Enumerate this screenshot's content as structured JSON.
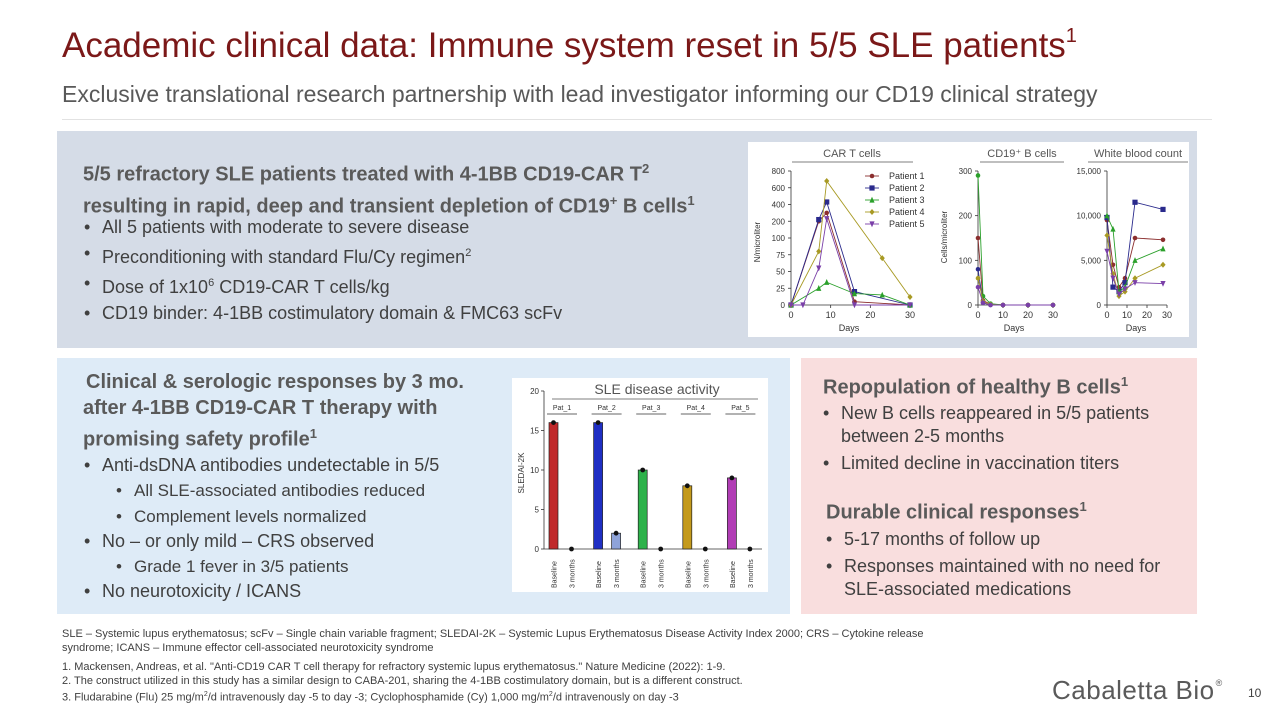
{
  "header": {
    "title": "Academic clinical data: Immune system reset in 5/5 SLE patients",
    "title_sup": "1",
    "subtitle": "Exclusive translational research partnership with lead investigator informing our CD19 clinical strategy"
  },
  "top_panel": {
    "heading_line1": "5/5 refractory SLE patients treated with 4-1BB CD19-CAR T",
    "heading_line1_sup": "2",
    "heading_line2_pre": "resulting in rapid, deep and transient depletion of CD19",
    "heading_line2_sup_plus": "+",
    "heading_line2_post": " B cells",
    "heading_line2_sup": "1",
    "bullets": {
      "b1": "All 5 patients with moderate to severe disease",
      "b2_pre": "Preconditioning with standard Flu/Cy regimen",
      "b2_sup": "2",
      "b3_pre": "Dose of 1x10",
      "b3_sup": "6",
      "b3_post": " CD19-CAR T cells/kg",
      "b4": "CD19 binder: 4-1BB costimulatory domain & FMC63 scFv"
    }
  },
  "left_panel": {
    "heading_line1": "Clinical & serologic responses by 3 mo.",
    "heading_line2": "after 4-1BB CD19-CAR T therapy with",
    "heading_line3": "promising safety profile",
    "heading_sup": "1",
    "bullets": {
      "b1": "Anti-dsDNA antibodies undetectable in 5/5",
      "b1a": "All SLE-associated antibodies reduced",
      "b1b": "Complement levels normalized",
      "b2": "No – or only mild – CRS observed",
      "b2a": "Grade 1 fever in 3/5 patients",
      "b3": "No neurotoxicity / ICANS"
    }
  },
  "right_panel": {
    "heading1": "Repopulation of healthy B cells",
    "heading1_sup": "1",
    "bullets1": {
      "b1_line1": "New B cells reappeared in 5/5 patients",
      "b1_line2": "between 2-5 months",
      "b2": "Limited decline in vaccination titers"
    },
    "heading2": "Durable clinical responses",
    "heading2_sup": "1",
    "bullets2": {
      "b1": "5-17 months of follow up",
      "b2_line1": "Responses maintained with no need for",
      "b2_line2": "SLE-associated medications"
    }
  },
  "chart_data": [
    {
      "type": "line",
      "title": "CAR T cells",
      "xlabel": "Days",
      "ylabel": "N/microliter",
      "xlim": [
        0,
        30
      ],
      "x_ticks": [
        "0",
        "10",
        "20",
        "30"
      ],
      "y_ticks": [
        "0",
        "25",
        "50",
        "75",
        "100",
        "200",
        "400",
        "600",
        "800"
      ],
      "y_scale": "segmented",
      "legend": "top-right",
      "series": [
        {
          "name": "Patient 1",
          "color": "#8B2E2E",
          "marker": "circle",
          "points": [
            [
              0,
              0
            ],
            [
              7,
              200
            ],
            [
              9,
              300
            ],
            [
              16,
              5
            ],
            [
              30,
              0
            ]
          ]
        },
        {
          "name": "Patient 2",
          "color": "#2A2A8C",
          "marker": "square",
          "points": [
            [
              0,
              0
            ],
            [
              7,
              220
            ],
            [
              9,
              430
            ],
            [
              16,
              20
            ],
            [
              30,
              0
            ]
          ]
        },
        {
          "name": "Patient 3",
          "color": "#2BA02B",
          "marker": "triangle",
          "points": [
            [
              0,
              0
            ],
            [
              7,
              25
            ],
            [
              9,
              34
            ],
            [
              16,
              17
            ],
            [
              23,
              15
            ],
            [
              30,
              0
            ]
          ]
        },
        {
          "name": "Patient 4",
          "color": "#A89A24",
          "marker": "diamond",
          "points": [
            [
              0,
              0
            ],
            [
              7,
              80
            ],
            [
              9,
              680
            ],
            [
              23,
              70
            ],
            [
              30,
              12
            ]
          ]
        },
        {
          "name": "Patient 5",
          "color": "#7A3FA8",
          "marker": "triangle-down",
          "points": [
            [
              0,
              0
            ],
            [
              3,
              0
            ],
            [
              7,
              55
            ],
            [
              9,
              230
            ],
            [
              16,
              0
            ],
            [
              30,
              0
            ]
          ]
        }
      ]
    },
    {
      "type": "line",
      "title": "CD19⁺ B cells",
      "xlabel": "Days",
      "ylabel": "Cells/microliter",
      "xlim": [
        0,
        30
      ],
      "ylim": [
        0,
        300
      ],
      "x_ticks": [
        "0",
        "10",
        "20",
        "30"
      ],
      "y_ticks": [
        "0",
        "100",
        "200",
        "300"
      ],
      "series": [
        {
          "name": "Patient 1",
          "color": "#8B2E2E",
          "points": [
            [
              0,
              150
            ],
            [
              2,
              10
            ],
            [
              5,
              2
            ],
            [
              10,
              0
            ],
            [
              20,
              0
            ],
            [
              30,
              0
            ]
          ]
        },
        {
          "name": "Patient 2",
          "color": "#2A2A8C",
          "points": [
            [
              0,
              80
            ],
            [
              2,
              5
            ],
            [
              5,
              0
            ],
            [
              10,
              0
            ],
            [
              20,
              0
            ],
            [
              30,
              0
            ]
          ]
        },
        {
          "name": "Patient 3",
          "color": "#2BA02B",
          "points": [
            [
              0,
              290
            ],
            [
              2,
              20
            ],
            [
              5,
              3
            ],
            [
              10,
              0
            ],
            [
              20,
              0
            ],
            [
              30,
              0
            ]
          ]
        },
        {
          "name": "Patient 4",
          "color": "#A89A24",
          "points": [
            [
              0,
              60
            ],
            [
              2,
              8
            ],
            [
              5,
              1
            ],
            [
              10,
              0
            ],
            [
              20,
              0
            ],
            [
              30,
              0
            ]
          ]
        },
        {
          "name": "Patient 5",
          "color": "#7A3FA8",
          "points": [
            [
              0,
              40
            ],
            [
              2,
              5
            ],
            [
              5,
              0
            ],
            [
              10,
              0
            ],
            [
              20,
              0
            ],
            [
              30,
              0
            ]
          ]
        }
      ]
    },
    {
      "type": "line",
      "title": "White blood count",
      "xlabel": "Days",
      "xlim": [
        0,
        30
      ],
      "ylim": [
        0,
        15000
      ],
      "x_ticks": [
        "0",
        "10",
        "20",
        "30"
      ],
      "y_ticks": [
        "0",
        "5,000",
        "10,000",
        "15,000"
      ],
      "series": [
        {
          "name": "Patient 1",
          "color": "#8B2E2E",
          "points": [
            [
              0,
              9500
            ],
            [
              3,
              4500
            ],
            [
              6,
              2000
            ],
            [
              9,
              3000
            ],
            [
              14,
              7500
            ],
            [
              28,
              7300
            ]
          ]
        },
        {
          "name": "Patient 2",
          "color": "#2A2A8C",
          "points": [
            [
              0,
              9800
            ],
            [
              3,
              2000
            ],
            [
              6,
              1500
            ],
            [
              9,
              2500
            ],
            [
              14,
              11500
            ],
            [
              28,
              10700
            ]
          ]
        },
        {
          "name": "Patient 3",
          "color": "#2BA02B",
          "points": [
            [
              0,
              10000
            ],
            [
              3,
              8500
            ],
            [
              6,
              1500
            ],
            [
              9,
              2000
            ],
            [
              14,
              5000
            ],
            [
              28,
              6300
            ]
          ]
        },
        {
          "name": "Patient 4",
          "color": "#A89A24",
          "points": [
            [
              0,
              7800
            ],
            [
              3,
              3500
            ],
            [
              6,
              1000
            ],
            [
              9,
              1500
            ],
            [
              14,
              3000
            ],
            [
              28,
              4500
            ]
          ]
        },
        {
          "name": "Patient 5",
          "color": "#7A3FA8",
          "points": [
            [
              0,
              6000
            ],
            [
              3,
              3000
            ],
            [
              6,
              1200
            ],
            [
              9,
              1800
            ],
            [
              14,
              2500
            ],
            [
              28,
              2400
            ]
          ]
        }
      ]
    },
    {
      "type": "bar",
      "title": "SLE disease activity",
      "ylabel": "SLEDAI-2K",
      "ylim": [
        0,
        20
      ],
      "y_ticks": [
        "0",
        "5",
        "10",
        "15",
        "20"
      ],
      "groups": [
        "Pat_1",
        "Pat_2",
        "Pat_3",
        "Pat_4",
        "Pat_5"
      ],
      "categories": [
        "Baseline",
        "3 months"
      ],
      "series": [
        {
          "name": "Pat_1",
          "color": "#C0292B",
          "values": [
            16,
            0
          ]
        },
        {
          "name": "Pat_2",
          "color": "#1F2FC4",
          "values": [
            16,
            2
          ]
        },
        {
          "name": "Pat_3",
          "color": "#2DB24A",
          "values": [
            10,
            0
          ]
        },
        {
          "name": "Pat_4",
          "color": "#C49A1C",
          "values": [
            8,
            0
          ]
        },
        {
          "name": "Pat_5",
          "color": "#B13DB5",
          "values": [
            9,
            0
          ]
        }
      ],
      "three_month_colors": [
        "#F2C7C7",
        "#8EA3D9",
        "#BFE8C5",
        "#F0E1B0",
        "#E3BEE6"
      ]
    }
  ],
  "footnotes": {
    "abbrev_line1": "SLE – Systemic lupus erythematosus; scFv – Single chain variable fragment; SLEDAI-2K – Systemic Lupus Erythematosus Disease Activity Index 2000; CRS – Cytokine release",
    "abbrev_line2": "syndrome; ICANS – Immune effector cell-associated neurotoxicity syndrome",
    "ref1": "1. Mackensen, Andreas, et al. \"Anti-CD19 CAR T cell therapy for refractory systemic lupus erythematosus.\" Nature Medicine (2022): 1-9.",
    "ref2": "2. The construct utilized in this study has a similar design to CABA-201, sharing the 4-1BB costimulatory domain, but is a different construct.",
    "ref3_a": "3. Fludarabine (Flu) 25 mg/m",
    "ref3_sup1": "2",
    "ref3_b": "/d intravenously day -5 to day -3; Cyclophosphamide (Cy) 1,000 mg/m",
    "ref3_sup2": "2",
    "ref3_c": "/d intravenously on day -3"
  },
  "footer": {
    "logo": "Cabaletta Bio",
    "logo_mark": "®",
    "page_number": "10"
  }
}
